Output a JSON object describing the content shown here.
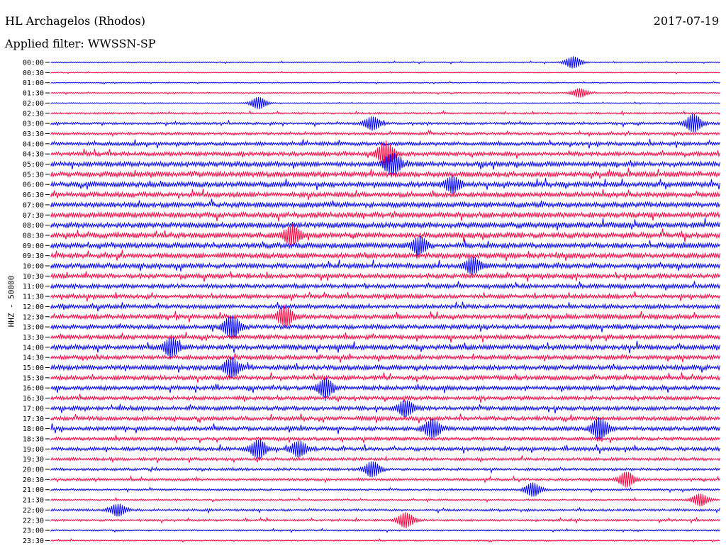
{
  "header": {
    "station": "HL Archagelos (Rhodos)",
    "date": "2017-07-19",
    "filter": "Applied filter: WWSSN-SP"
  },
  "y_axis_label": "HHZ - 50000",
  "chart_data": {
    "type": "line",
    "title": "HL Archagelos (Rhodos)",
    "subtitle": "Applied filter: WWSSN-SP",
    "ylabel": "HHZ - 50000",
    "row_interval_minutes": 30,
    "colors": [
      "#0000ff",
      "#ff0040"
    ],
    "tick_labels": [
      "00:00",
      "00:30",
      "01:00",
      "01:30",
      "02:00",
      "02:30",
      "03:00",
      "03:30",
      "04:00",
      "04:30",
      "05:00",
      "05:30",
      "06:00",
      "06:30",
      "07:00",
      "07:30",
      "08:00",
      "08:30",
      "09:00",
      "09:30",
      "10:00",
      "10:30",
      "11:00",
      "11:30",
      "12:00",
      "12:30",
      "13:00",
      "13:30",
      "14:00",
      "14:30",
      "15:00",
      "15:30",
      "16:00",
      "16:30",
      "17:00",
      "17:30",
      "18:00",
      "18:30",
      "19:00",
      "19:30",
      "20:00",
      "20:30",
      "21:00",
      "21:30",
      "22:00",
      "22:30",
      "23:00",
      "23:30"
    ],
    "noise_level": [
      0.6,
      0.5,
      0.5,
      0.6,
      0.5,
      1.0,
      1.3,
      1.4,
      2.0,
      2.2,
      2.6,
      2.8,
      2.7,
      2.6,
      2.8,
      2.9,
      3.0,
      2.9,
      2.8,
      2.7,
      2.7,
      2.4,
      2.3,
      2.2,
      2.2,
      2.4,
      2.4,
      2.3,
      2.6,
      2.2,
      2.5,
      2.3,
      2.3,
      2.0,
      2.2,
      2.1,
      2.2,
      1.8,
      2.0,
      1.6,
      1.4,
      1.3,
      1.0,
      0.9,
      1.2,
      1.1,
      0.8,
      0.7
    ],
    "events": [
      {
        "row": 0,
        "x": 0.78,
        "amp": 8
      },
      {
        "row": 3,
        "x": 0.79,
        "amp": 6
      },
      {
        "row": 4,
        "x": 0.31,
        "amp": 8
      },
      {
        "row": 6,
        "x": 0.48,
        "amp": 9
      },
      {
        "row": 6,
        "x": 0.96,
        "amp": 12
      },
      {
        "row": 9,
        "x": 0.5,
        "amp": 16
      },
      {
        "row": 10,
        "x": 0.51,
        "amp": 14
      },
      {
        "row": 12,
        "x": 0.6,
        "amp": 10
      },
      {
        "row": 17,
        "x": 0.36,
        "amp": 12
      },
      {
        "row": 18,
        "x": 0.55,
        "amp": 10
      },
      {
        "row": 20,
        "x": 0.63,
        "amp": 10
      },
      {
        "row": 25,
        "x": 0.35,
        "amp": 12
      },
      {
        "row": 26,
        "x": 0.27,
        "amp": 14
      },
      {
        "row": 28,
        "x": 0.18,
        "amp": 12
      },
      {
        "row": 30,
        "x": 0.27,
        "amp": 12
      },
      {
        "row": 32,
        "x": 0.41,
        "amp": 12
      },
      {
        "row": 34,
        "x": 0.53,
        "amp": 10
      },
      {
        "row": 36,
        "x": 0.57,
        "amp": 12
      },
      {
        "row": 36,
        "x": 0.82,
        "amp": 14
      },
      {
        "row": 38,
        "x": 0.31,
        "amp": 12
      },
      {
        "row": 38,
        "x": 0.37,
        "amp": 10
      },
      {
        "row": 40,
        "x": 0.48,
        "amp": 10
      },
      {
        "row": 41,
        "x": 0.86,
        "amp": 10
      },
      {
        "row": 42,
        "x": 0.72,
        "amp": 9
      },
      {
        "row": 43,
        "x": 0.97,
        "amp": 8
      },
      {
        "row": 44,
        "x": 0.1,
        "amp": 8
      },
      {
        "row": 45,
        "x": 0.53,
        "amp": 10
      }
    ]
  }
}
